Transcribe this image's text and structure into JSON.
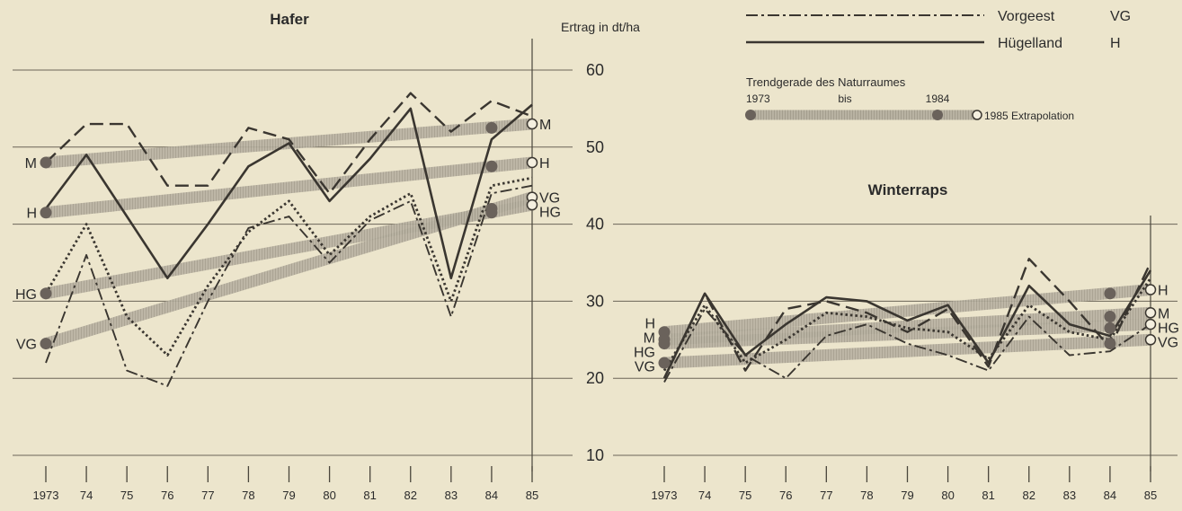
{
  "chart_data": {
    "type": "line",
    "y_axis": {
      "label": "Ertrag in dt/ha",
      "range": [
        10,
        60
      ],
      "ticks": [
        10,
        20,
        30,
        40,
        50,
        60
      ]
    },
    "x_years": [
      1973,
      1974,
      1975,
      1976,
      1977,
      1978,
      1979,
      1980,
      1981,
      1982,
      1983,
      1984,
      1985
    ],
    "x_tick_labels": [
      "1973",
      "74",
      "75",
      "76",
      "77",
      "78",
      "79",
      "80",
      "81",
      "82",
      "83",
      "84",
      "85"
    ],
    "grid": "horizontal",
    "legend": {
      "placement": "top-right",
      "entries": [
        {
          "label": "Vorgeest",
          "abbr": "VG",
          "style": "dash-dot"
        },
        {
          "label": "Hügelland",
          "abbr": "H",
          "style": "solid"
        }
      ],
      "trend": {
        "title": "Trendgerade des Naturraumes",
        "start_label": "1973",
        "mid_label": "bis",
        "end_label": "1984",
        "extrapolation_label": "1985 Extrapolation"
      }
    },
    "charts": [
      {
        "title": "Hafer",
        "series": [
          {
            "label": "M",
            "style": "dashed",
            "values": [
              48,
              53,
              53,
              45,
              45,
              52.5,
              51,
              44,
              51,
              57,
              52,
              56,
              54
            ]
          },
          {
            "label": "H",
            "style": "solid",
            "values": [
              42,
              49,
              41,
              33,
              40,
              47.5,
              50.5,
              43,
              48.5,
              55,
              33,
              51,
              55.5
            ]
          },
          {
            "label": "HG",
            "style": "dotted",
            "values": [
              31,
              40,
              28,
              23,
              32,
              39,
              43,
              36,
              41,
              44,
              30,
              45,
              46
            ]
          },
          {
            "label": "VG",
            "style": "dash-dot",
            "values": [
              22,
              36,
              21,
              19,
              30,
              39.5,
              41,
              35,
              40.5,
              43,
              28,
              44,
              45
            ]
          }
        ],
        "trends": [
          {
            "label": "M",
            "start": 48,
            "end_1984": 52.5,
            "extrapolation_1985": 53
          },
          {
            "label": "H",
            "start": 41.5,
            "end_1984": 47.5,
            "extrapolation_1985": 48
          },
          {
            "label": "VG",
            "start": 24.5,
            "end_1984": 42,
            "extrapolation_1985": 43.5
          },
          {
            "label": "HG",
            "start": 31,
            "end_1984": 41.5,
            "extrapolation_1985": 42.5
          }
        ]
      },
      {
        "title": "Winterraps",
        "series": [
          {
            "label": "M",
            "style": "dashed",
            "values": [
              20,
              31,
              21,
              29,
              30,
              28.5,
              26,
              29,
              21.5,
              35.5,
              30,
              24,
              35
            ]
          },
          {
            "label": "H",
            "style": "solid",
            "values": [
              20,
              31,
              23,
              27,
              30.5,
              30,
              27.5,
              29.5,
              22,
              32,
              27,
              25.5,
              34
            ]
          },
          {
            "label": "HG",
            "style": "dotted",
            "values": [
              21,
              29.5,
              22,
              25,
              28.5,
              28,
              26.5,
              26,
              22.5,
              29.5,
              26,
              25,
              33
            ]
          },
          {
            "label": "VG",
            "style": "dash-dot",
            "values": [
              19.5,
              29,
              23,
              20,
              25.5,
              27,
              24.5,
              23,
              21,
              28,
              23,
              23.5,
              27
            ]
          }
        ],
        "trends": [
          {
            "label": "H",
            "start": 26,
            "end_1984": 31,
            "extrapolation_1985": 31.5
          },
          {
            "label": "M",
            "start": 25,
            "end_1984": 28,
            "extrapolation_1985": 28.5
          },
          {
            "label": "HG",
            "start": 24.5,
            "end_1984": 26.5,
            "extrapolation_1985": 27
          },
          {
            "label": "VG",
            "start": 22,
            "end_1984": 24.5,
            "extrapolation_1985": 25
          }
        ]
      }
    ]
  }
}
